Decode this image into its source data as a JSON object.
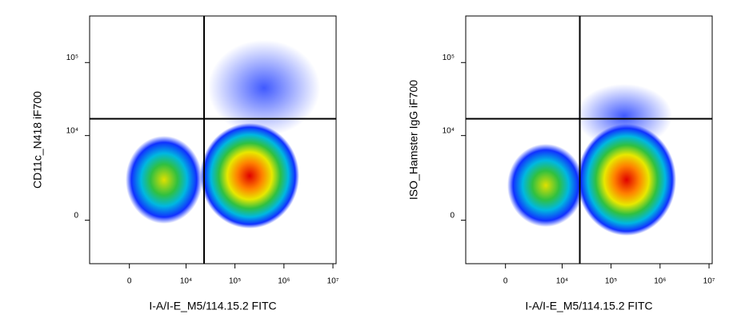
{
  "chart_data": [
    {
      "type": "scatter",
      "x_label": "I-A/I-E_M5/114.15.2 FITC",
      "y_label": "CD11c_N418 iF700",
      "xscale": "biex",
      "yscale": "biex",
      "xlim": [
        -4430,
        11600000
      ],
      "ylim": [
        -2570,
        433000
      ],
      "xticks": [
        0,
        {
          "value": 10000,
          "label": "10⁴"
        },
        {
          "value": 100000,
          "label": "10⁵"
        },
        {
          "value": 1000000,
          "label": "10⁶"
        },
        {
          "value": 10000000,
          "label": "10⁷"
        }
      ],
      "yticks": [
        0,
        {
          "value": 10000,
          "label": "10⁴"
        },
        {
          "value": 100000,
          "label": "10⁵"
        }
      ],
      "gates": {
        "x": 23400,
        "y": 17000
      }
    },
    {
      "type": "scatter",
      "x_label": "I-A/I-E_M5/114.15.2 FITC",
      "y_label": "ISO_Hamster IgG iF700",
      "xscale": "biex",
      "yscale": "biex",
      "xlim": [
        -4430,
        11600000
      ],
      "ylim": [
        -2570,
        433000
      ],
      "xticks": [
        0,
        {
          "value": 10000,
          "label": "10⁴"
        },
        {
          "value": 100000,
          "label": "10⁵"
        },
        {
          "value": 1000000,
          "label": "10⁶"
        },
        {
          "value": 10000000,
          "label": "10⁷"
        }
      ],
      "yticks": [
        0,
        {
          "value": 10000,
          "label": "10⁴"
        },
        {
          "value": 100000,
          "label": "10⁵"
        }
      ],
      "gates": {
        "x": 23000,
        "y": 17000
      }
    }
  ]
}
